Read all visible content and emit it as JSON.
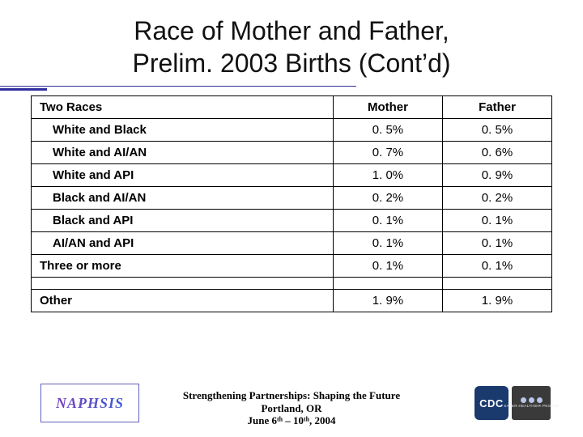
{
  "title_line1": "Race of Mother and Father,",
  "title_line2": "Prelim. 2003 Births (Cont’d)",
  "table": {
    "columns": [
      "Two Races",
      "Mother",
      "Father"
    ],
    "rows": [
      {
        "label": "White and Black",
        "mother": "0. 5%",
        "father": "0. 5%",
        "indent": true
      },
      {
        "label": "White and AI/AN",
        "mother": "0. 7%",
        "father": "0. 6%",
        "indent": true
      },
      {
        "label": "White and API",
        "mother": "1. 0%",
        "father": "0. 9%",
        "indent": true
      },
      {
        "label": "Black and AI/AN",
        "mother": "0. 2%",
        "father": "0. 2%",
        "indent": true
      },
      {
        "label": "Black and API",
        "mother": "0. 1%",
        "father": "0. 1%",
        "indent": true
      },
      {
        "label": "AI/AN and API",
        "mother": "0. 1%",
        "father": "0. 1%",
        "indent": true
      },
      {
        "label": "Three or more",
        "mother": "0. 1%",
        "father": "0. 1%",
        "indent": false
      },
      {
        "spacer": true
      },
      {
        "label": "Other",
        "mother": "1. 9%",
        "father": "1. 9%",
        "indent": false
      }
    ],
    "border_color": "#000000",
    "font_size": 15,
    "header_font_weight": 700
  },
  "accent_color": "#2f2f9f",
  "footer": {
    "line1": "Strengthening Partnerships: Shaping the Future",
    "line2": "Portland, OR",
    "line3": "June 6ᵗʰ – 10ᵗʰ, 2004"
  },
  "logo_left_text": "NAPHSIS",
  "logo_right": {
    "badge": "CDC",
    "tag": "SAFER·HEALTHIER·PEOPLE"
  }
}
